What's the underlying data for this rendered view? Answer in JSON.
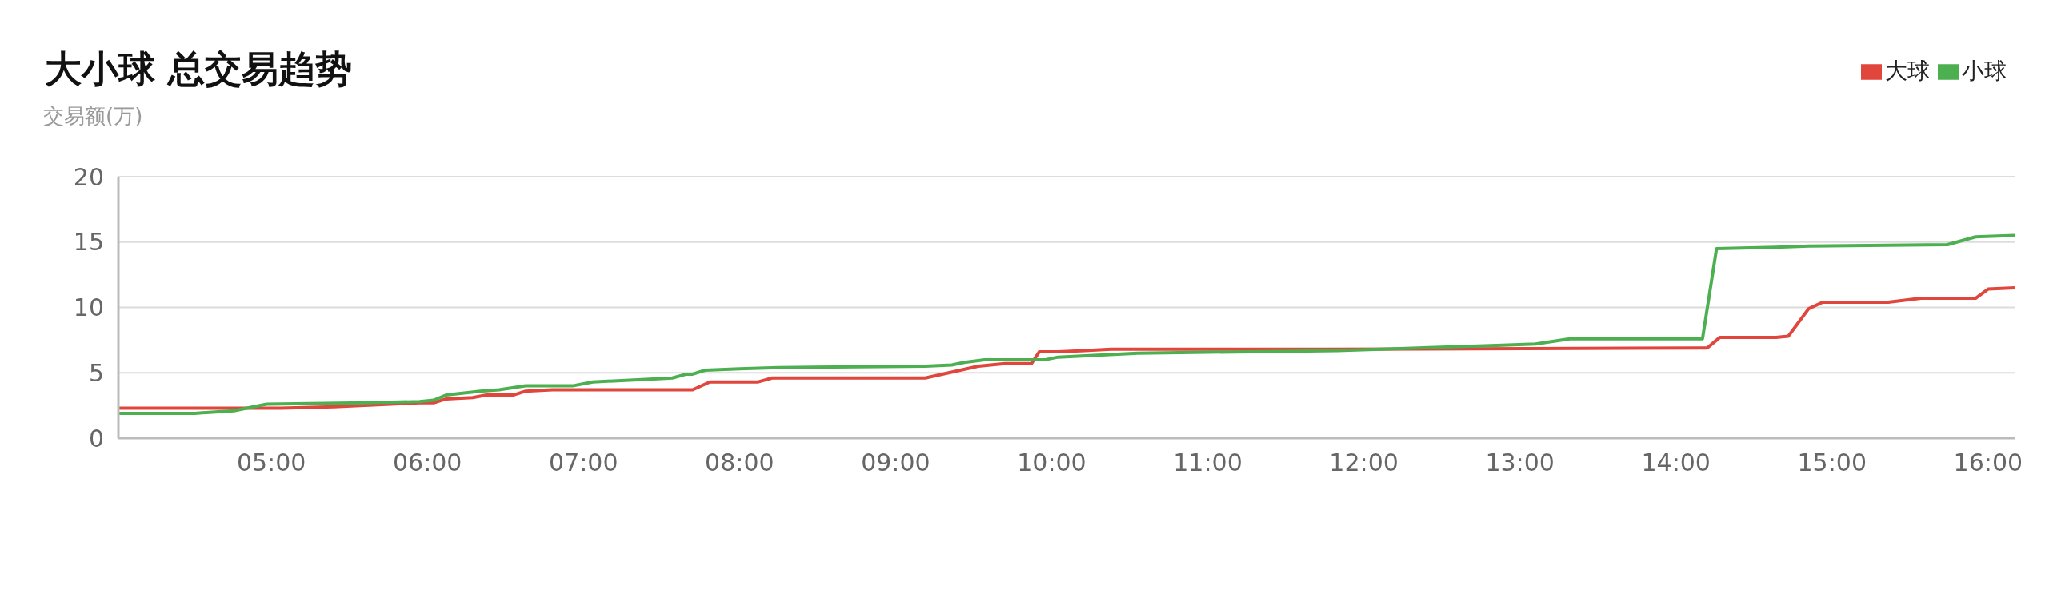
{
  "chart_data": {
    "type": "line",
    "title": "大小球 总交易趋势",
    "ylabel": "交易额(万)",
    "xlim": [
      4.02,
      16.17
    ],
    "xticks": [
      {
        "value": 5,
        "label": "05:00"
      },
      {
        "value": 6,
        "label": "06:00"
      },
      {
        "value": 7,
        "label": "07:00"
      },
      {
        "value": 8,
        "label": "08:00"
      },
      {
        "value": 9,
        "label": "09:00"
      },
      {
        "value": 10,
        "label": "10:00"
      },
      {
        "value": 11,
        "label": "11:00"
      },
      {
        "value": 12,
        "label": "12:00"
      },
      {
        "value": 13,
        "label": "13:00"
      },
      {
        "value": 14,
        "label": "14:00"
      },
      {
        "value": 15,
        "label": "15:00"
      },
      {
        "value": 16,
        "label": "16:00"
      }
    ],
    "ylim": [
      0,
      20
    ],
    "yticks": [
      0,
      5,
      10,
      15,
      20
    ],
    "grid": "y",
    "legend": "top right",
    "marker": "none",
    "line_style": "solid",
    "series": [
      {
        "name": "大球",
        "color": "#e0463c",
        "x": [
          4.02,
          5.06,
          5.4,
          5.95,
          6.04,
          6.12,
          6.29,
          6.38,
          6.55,
          6.63,
          6.8,
          7.7,
          7.81,
          8.12,
          8.21,
          9.19,
          9.53,
          9.7,
          9.87,
          9.92,
          10.04,
          10.21,
          10.38,
          11.74,
          14.15,
          14.2,
          14.28,
          14.64,
          14.72,
          14.85,
          14.94,
          15.36,
          15.57,
          15.92,
          16.0,
          16.17
        ],
        "values": [
          2.3,
          2.3,
          2.4,
          2.7,
          2.7,
          3.0,
          3.1,
          3.3,
          3.3,
          3.6,
          3.7,
          3.7,
          4.3,
          4.3,
          4.6,
          4.6,
          5.5,
          5.7,
          5.7,
          6.6,
          6.6,
          6.7,
          6.8,
          6.8,
          6.9,
          6.9,
          7.7,
          7.7,
          7.8,
          9.9,
          10.4,
          10.4,
          10.7,
          10.7,
          11.4,
          11.5
        ]
      },
      {
        "name": "小球",
        "color": "#4caf50",
        "x": [
          4.02,
          4.51,
          4.76,
          4.97,
          5.61,
          5.95,
          6.04,
          6.12,
          6.34,
          6.46,
          6.63,
          6.93,
          7.06,
          7.4,
          7.57,
          7.66,
          7.7,
          7.78,
          8.0,
          8.25,
          9.19,
          9.36,
          9.44,
          9.57,
          9.96,
          10.04,
          10.55,
          11.83,
          12.85,
          13.1,
          13.32,
          14.17,
          14.26,
          14.64,
          14.85,
          15.74,
          15.92,
          16.17
        ],
        "values": [
          1.9,
          1.9,
          2.1,
          2.6,
          2.7,
          2.8,
          2.9,
          3.3,
          3.6,
          3.7,
          4.0,
          4.0,
          4.3,
          4.5,
          4.6,
          4.9,
          4.9,
          5.2,
          5.3,
          5.4,
          5.5,
          5.6,
          5.8,
          6.0,
          6.0,
          6.2,
          6.5,
          6.7,
          7.1,
          7.2,
          7.6,
          7.6,
          14.5,
          14.6,
          14.7,
          14.8,
          15.4,
          15.5
        ]
      }
    ]
  }
}
